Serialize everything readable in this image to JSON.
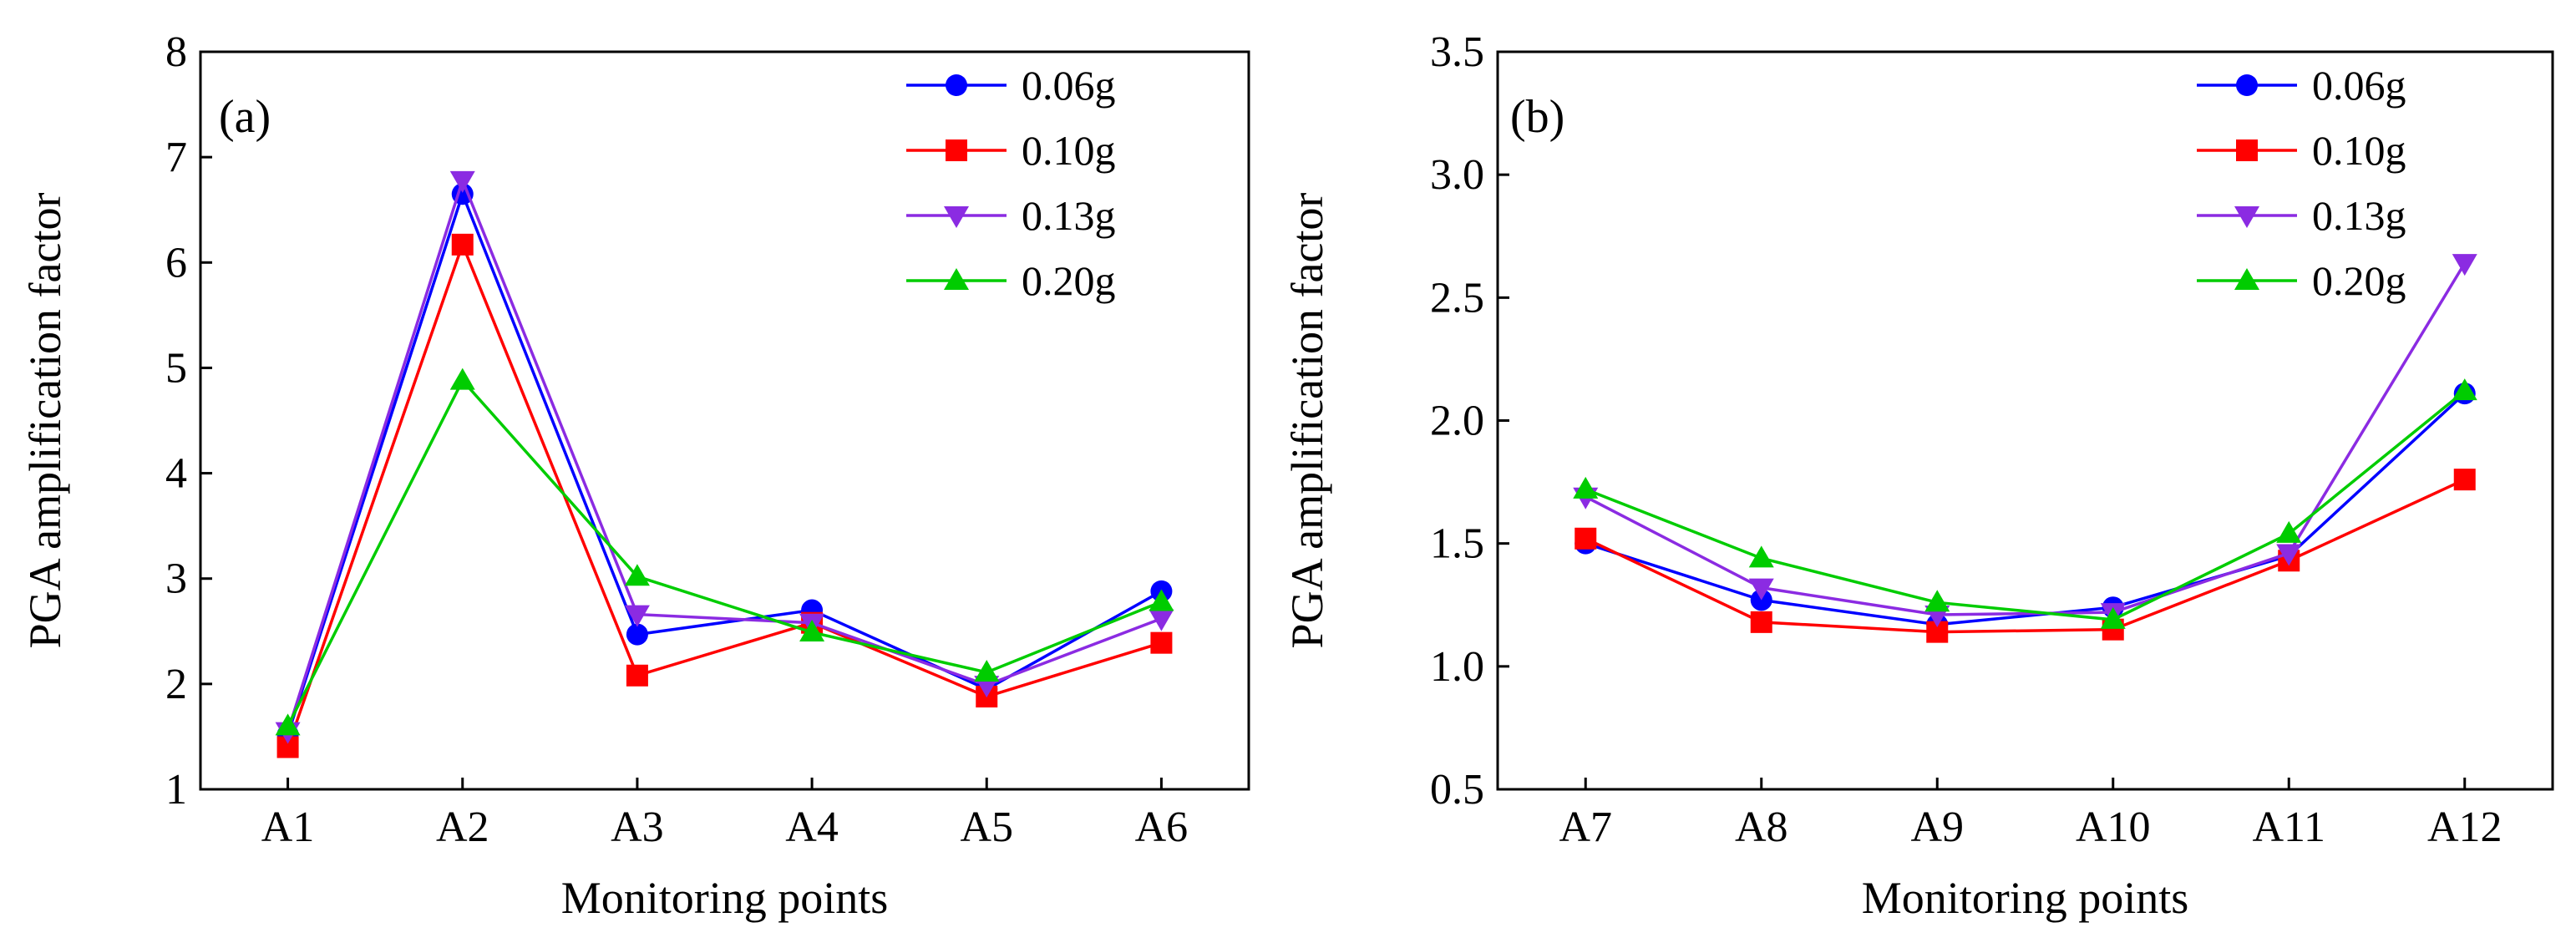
{
  "chart_data": [
    {
      "type": "line",
      "panel_label": "(a)",
      "xlabel": "Monitoring points",
      "ylabel": "PGA amplification factor",
      "categories": [
        "A1",
        "A2",
        "A3",
        "A4",
        "A5",
        "A6"
      ],
      "ylim": [
        1,
        8
      ],
      "yticks": [
        1,
        2,
        3,
        4,
        5,
        6,
        7,
        8
      ],
      "ytick_labels": [
        "1",
        "2",
        "3",
        "4",
        "5",
        "6",
        "7",
        "8"
      ],
      "legend_position": "top-right",
      "series": [
        {
          "name": "0.06g",
          "color": "#0000ff",
          "marker": "circle",
          "values": [
            1.52,
            6.65,
            2.47,
            2.7,
            1.95,
            2.88
          ]
        },
        {
          "name": "0.10g",
          "color": "#ff0000",
          "marker": "square",
          "values": [
            1.4,
            6.17,
            2.08,
            2.58,
            1.88,
            2.39
          ]
        },
        {
          "name": "0.13g",
          "color": "#8b2be2",
          "marker": "triangle-down",
          "values": [
            1.55,
            6.78,
            2.66,
            2.58,
            1.99,
            2.62
          ]
        },
        {
          "name": "0.20g",
          "color": "#00cc00",
          "marker": "triangle-up",
          "values": [
            1.6,
            4.88,
            3.02,
            2.49,
            2.11,
            2.78
          ]
        }
      ]
    },
    {
      "type": "line",
      "panel_label": "(b)",
      "xlabel": "Monitoring points",
      "ylabel": "PGA amplification factor",
      "categories": [
        "A7",
        "A8",
        "A9",
        "A10",
        "A11",
        "A12"
      ],
      "ylim": [
        0.5,
        3.5
      ],
      "yticks": [
        0.5,
        1.0,
        1.5,
        2.0,
        2.5,
        3.0,
        3.5
      ],
      "ytick_labels": [
        "0.5",
        "1.0",
        "1.5",
        "2.0",
        "2.5",
        "3.0",
        "3.5"
      ],
      "legend_position": "top-right",
      "series": [
        {
          "name": "0.06g",
          "color": "#0000ff",
          "marker": "circle",
          "values": [
            1.5,
            1.27,
            1.17,
            1.24,
            1.45,
            2.11
          ]
        },
        {
          "name": "0.10g",
          "color": "#ff0000",
          "marker": "square",
          "values": [
            1.52,
            1.18,
            1.14,
            1.15,
            1.43,
            1.76
          ]
        },
        {
          "name": "0.13g",
          "color": "#8b2be2",
          "marker": "triangle-down",
          "values": [
            1.69,
            1.32,
            1.21,
            1.22,
            1.46,
            2.64
          ]
        },
        {
          "name": "0.20g",
          "color": "#00cc00",
          "marker": "triangle-up",
          "values": [
            1.72,
            1.44,
            1.26,
            1.19,
            1.54,
            2.12
          ]
        }
      ]
    }
  ]
}
